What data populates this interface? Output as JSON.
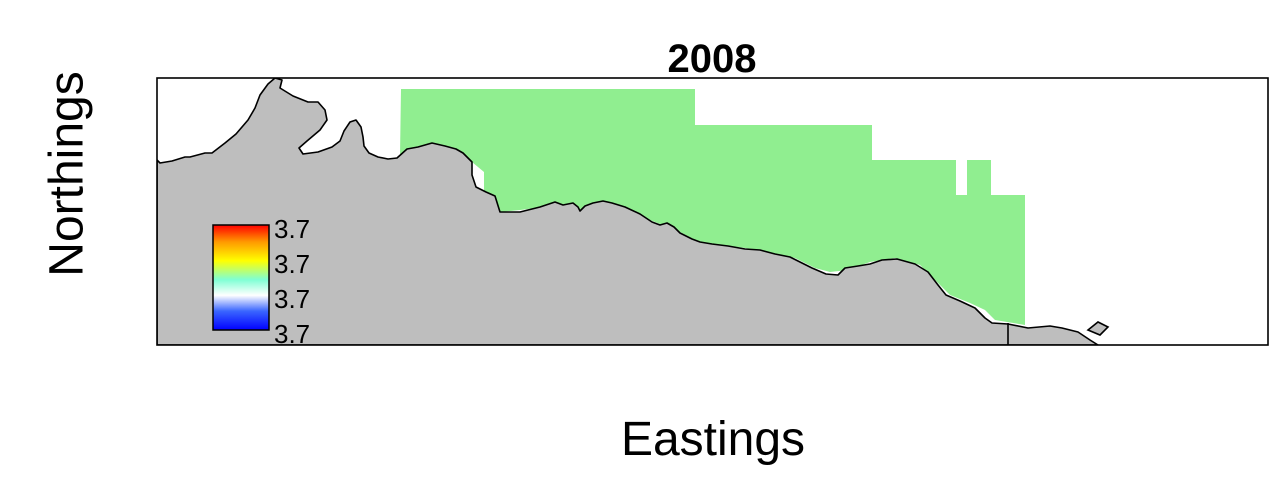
{
  "title": "2008",
  "xlabel": "Eastings",
  "ylabel": "Northings",
  "legend": {
    "labels": [
      "3.7",
      "3.7",
      "3.7",
      "3.7"
    ],
    "colors": [
      "#ff0000",
      "#ffff00",
      "#ffffff",
      "#0000ff"
    ]
  },
  "colors": {
    "land": "#bebebe",
    "survey_area": "#90ee90",
    "background": "#ffffff",
    "outline": "#000000"
  }
}
